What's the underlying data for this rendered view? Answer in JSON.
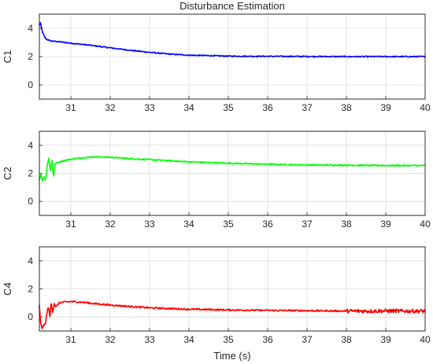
{
  "chart_data": {
    "type": "line",
    "title": "Disturbance Estimation",
    "xlabel": "Time (s)",
    "xlim": [
      30.2,
      40
    ],
    "x_ticks": [
      "31",
      "32",
      "33",
      "34",
      "35",
      "36",
      "37",
      "38",
      "39",
      "40"
    ],
    "grid": true,
    "subplots": [
      {
        "ylabel": "C1",
        "ylim": [
          -1,
          5
        ],
        "y_ticks": [
          "0",
          "2",
          "4"
        ],
        "series": [
          {
            "color": "#0000ff",
            "x": [
              30.2,
              30.23,
              30.26,
              30.3,
              30.35,
              30.4,
              30.5,
              30.7,
              31,
              31.5,
              32,
              32.5,
              33,
              33.5,
              34,
              34.5,
              35,
              36,
              37,
              38,
              39,
              40
            ],
            "y": [
              4.2,
              4.4,
              3.9,
              3.6,
              3.3,
              3.2,
              3.1,
              3.05,
              2.95,
              2.8,
              2.62,
              2.45,
              2.3,
              2.18,
              2.1,
              2.07,
              2.03,
              2.02,
              2.01,
              2.0,
              2.0,
              2.0
            ],
            "noise": 0.04
          }
        ]
      },
      {
        "ylabel": "C2",
        "ylim": [
          -1,
          5
        ],
        "y_ticks": [
          "0",
          "2",
          "4"
        ],
        "series": [
          {
            "color": "#00ff00",
            "x": [
              30.2,
              30.24,
              30.28,
              30.32,
              30.36,
              30.4,
              30.44,
              30.48,
              30.52,
              30.56,
              30.6,
              30.7,
              30.8,
              31,
              31.3,
              31.6,
              32,
              32.5,
              33,
              34,
              35,
              36,
              37,
              38,
              39,
              40
            ],
            "y": [
              1.5,
              2.0,
              1.4,
              1.8,
              1.5,
              2.6,
              3.1,
              2.2,
              3.0,
              1.7,
              2.7,
              2.8,
              2.9,
              3.0,
              3.12,
              3.18,
              3.15,
              3.05,
              2.98,
              2.82,
              2.72,
              2.65,
              2.6,
              2.58,
              2.56,
              2.55
            ],
            "noise": 0.05
          }
        ]
      },
      {
        "ylabel": "C4",
        "ylim": [
          -1,
          5
        ],
        "y_ticks": [
          "0",
          "2",
          "4"
        ],
        "series": [
          {
            "color": "#ff0000",
            "x": [
              30.2,
              30.23,
              30.27,
              30.31,
              30.35,
              30.39,
              30.43,
              30.47,
              30.5,
              30.54,
              30.58,
              30.62,
              30.7,
              30.8,
              31,
              31.3,
              31.6,
              32,
              32.5,
              33,
              34,
              35,
              36,
              37,
              38,
              38.5,
              39,
              39.5,
              40
            ],
            "y": [
              0.8,
              -0.4,
              -0.8,
              -0.6,
              -0.5,
              0.2,
              0.8,
              -0.1,
              1.1,
              0.3,
              1.0,
              0.7,
              1.0,
              1.05,
              1.1,
              1.05,
              0.95,
              0.85,
              0.75,
              0.65,
              0.55,
              0.5,
              0.47,
              0.45,
              0.42,
              0.42,
              0.43,
              0.42,
              0.42
            ],
            "noise": 0.06,
            "noise_tail_start": 38,
            "noise_tail": 0.14
          }
        ]
      }
    ]
  }
}
